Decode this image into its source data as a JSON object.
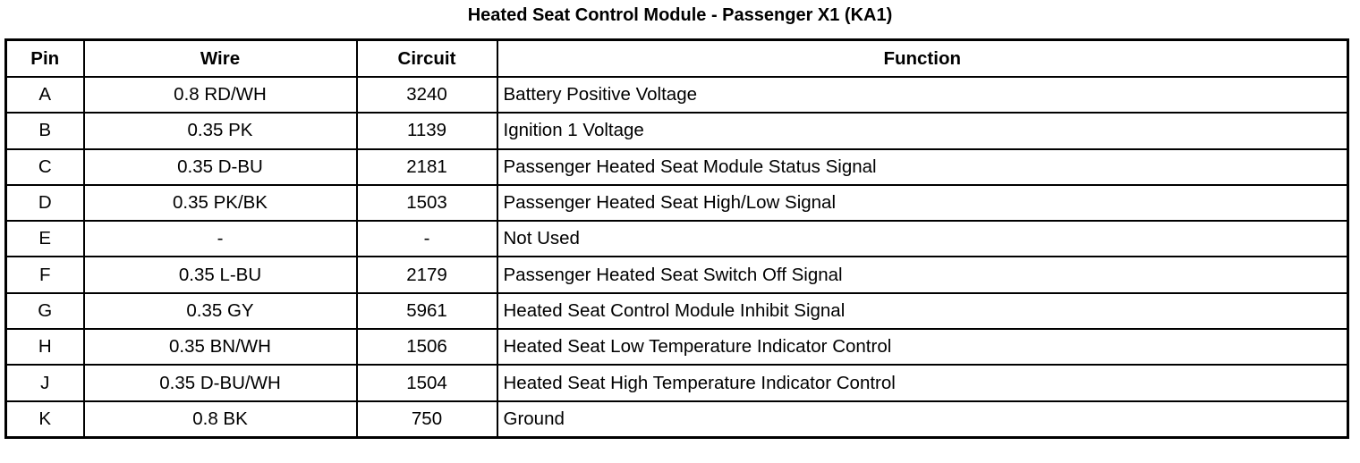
{
  "title": "Heated Seat Control Module - Passenger X1 (KA1)",
  "columns": [
    "Pin",
    "Wire",
    "Circuit",
    "Function"
  ],
  "rows": [
    {
      "pin": "A",
      "wire": "0.8 RD/WH",
      "circuit": "3240",
      "function": "Battery Positive Voltage"
    },
    {
      "pin": "B",
      "wire": "0.35 PK",
      "circuit": "1139",
      "function": "Ignition 1 Voltage"
    },
    {
      "pin": "C",
      "wire": "0.35 D-BU",
      "circuit": "2181",
      "function": "Passenger Heated Seat Module Status Signal"
    },
    {
      "pin": "D",
      "wire": "0.35 PK/BK",
      "circuit": "1503",
      "function": "Passenger Heated Seat High/Low Signal"
    },
    {
      "pin": "E",
      "wire": "-",
      "circuit": "-",
      "function": "Not Used"
    },
    {
      "pin": "F",
      "wire": "0.35 L-BU",
      "circuit": "2179",
      "function": "Passenger Heated Seat Switch Off Signal"
    },
    {
      "pin": "G",
      "wire": "0.35 GY",
      "circuit": "5961",
      "function": "Heated Seat Control Module Inhibit Signal"
    },
    {
      "pin": "H",
      "wire": "0.35 BN/WH",
      "circuit": "1506",
      "function": "Heated Seat Low Temperature Indicator Control"
    },
    {
      "pin": "J",
      "wire": "0.35 D-BU/WH",
      "circuit": "1504",
      "function": "Heated Seat High Temperature Indicator Control"
    },
    {
      "pin": "K",
      "wire": "0.8 BK",
      "circuit": "750",
      "function": "Ground"
    }
  ]
}
